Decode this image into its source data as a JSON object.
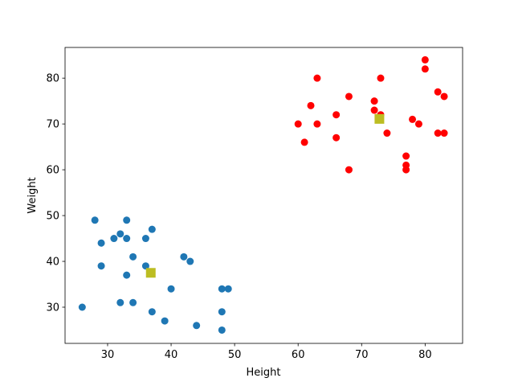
{
  "chart_data": {
    "type": "scatter",
    "x_label": "Height",
    "y_label": "Weight",
    "xlim": [
      23.3,
      85.9
    ],
    "ylim": [
      22.1,
      86.7
    ],
    "xticks": [
      30,
      40,
      50,
      60,
      70,
      80
    ],
    "yticks": [
      30,
      40,
      50,
      60,
      70,
      80
    ],
    "grid": false,
    "series": [
      {
        "color": "#1f77b4",
        "marker": "circle",
        "x": [
          26,
          28,
          29,
          29,
          31,
          32,
          33,
          33,
          37,
          36,
          34,
          33,
          36,
          32,
          34,
          37,
          39,
          40,
          42,
          43,
          44,
          48,
          49,
          48,
          48
        ],
        "values": [
          30,
          49,
          44,
          39,
          45,
          46,
          49,
          45,
          47,
          45,
          41,
          37,
          39,
          31,
          31,
          29,
          27,
          34,
          41,
          40,
          26,
          34,
          34,
          29,
          25
        ]
      },
      {
        "color": "#ff0000",
        "marker": "circle",
        "x": [
          60,
          61,
          62,
          63,
          63,
          66,
          66,
          68,
          68,
          72,
          72,
          73,
          73,
          74,
          77,
          77,
          77,
          78,
          79,
          80,
          80,
          82,
          83,
          82,
          83
        ],
        "values": [
          70,
          66,
          74,
          80,
          70,
          72,
          67,
          76,
          60,
          75,
          73,
          80,
          72,
          68,
          63,
          61,
          60,
          71,
          70,
          84,
          82,
          77,
          76,
          68,
          68
        ]
      },
      {
        "color": "#bcbd22",
        "marker": "square",
        "x": [
          36.8,
          72.8
        ],
        "values": [
          37.5,
          71.1
        ]
      }
    ]
  }
}
